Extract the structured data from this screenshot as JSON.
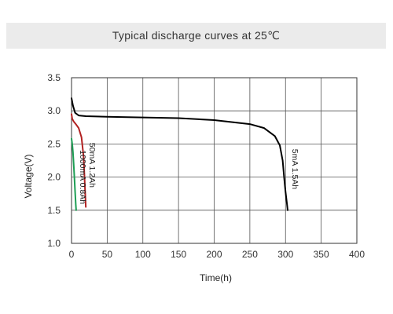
{
  "chart_data": {
    "type": "line",
    "title": "Typical discharge curves at 25℃",
    "xlabel": "Time(h)",
    "ylabel": "Voltage(V)",
    "xlim": [
      0,
      400
    ],
    "ylim": [
      1.0,
      3.5
    ],
    "x_ticks": [
      "0",
      "50",
      "100",
      "150",
      "200",
      "250",
      "300",
      "350",
      "400"
    ],
    "y_ticks": [
      "1.0",
      "1.5",
      "2.0",
      "2.5",
      "3.0",
      "3.5"
    ],
    "grid": true,
    "series": [
      {
        "name": "5mA 1.5Ah",
        "color": "#000000",
        "x": [
          0,
          2,
          5,
          10,
          20,
          50,
          100,
          150,
          200,
          250,
          270,
          285,
          292,
          296,
          298,
          300,
          302,
          303
        ],
        "y": [
          3.19,
          3.08,
          2.97,
          2.93,
          2.92,
          2.91,
          2.9,
          2.89,
          2.86,
          2.8,
          2.74,
          2.62,
          2.48,
          2.25,
          2.0,
          1.78,
          1.6,
          1.5
        ]
      },
      {
        "name": "50mA 1.2Ah",
        "color": "#b22222",
        "x": [
          0,
          1,
          3,
          6,
          10,
          14,
          17,
          19,
          20
        ],
        "y": [
          2.95,
          2.88,
          2.84,
          2.8,
          2.74,
          2.6,
          2.3,
          1.8,
          1.55
        ]
      },
      {
        "name": "1000mA 0.8Ah",
        "color": "#1e9e55",
        "x": [
          0,
          1,
          2,
          3,
          4,
          5,
          6,
          6.5
        ],
        "y": [
          2.58,
          2.5,
          2.38,
          2.2,
          2.0,
          1.78,
          1.58,
          1.5
        ]
      }
    ]
  }
}
